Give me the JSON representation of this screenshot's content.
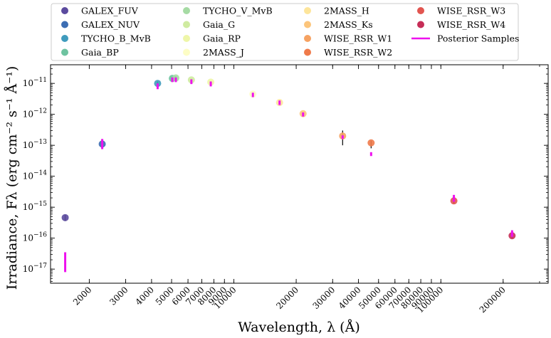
{
  "chart_data": {
    "type": "scatter",
    "xlabel": "Wavelength, λ (Å)",
    "ylabel": "Irradiance, Fλ (erg cm⁻² s⁻¹ Å⁻¹)",
    "x_scale": "log",
    "y_scale": "log",
    "xlim": [
      1300,
      330000
    ],
    "ylim": [
      3.5e-18,
      4e-11
    ],
    "x_ticks": [
      {
        "value": 2000,
        "label": "2000"
      },
      {
        "value": 3000,
        "label": "3000"
      },
      {
        "value": 4000,
        "label": "4000"
      },
      {
        "value": 5000,
        "label": "5000"
      },
      {
        "value": 6000,
        "label": "6000"
      },
      {
        "value": 7000,
        "label": "7000"
      },
      {
        "value": 8000,
        "label": "8000"
      },
      {
        "value": 9000,
        "label": "9000"
      },
      {
        "value": 10000,
        "label": "10000"
      },
      {
        "value": 20000,
        "label": "20000"
      },
      {
        "value": 30000,
        "label": "30000"
      },
      {
        "value": 40000,
        "label": "40000"
      },
      {
        "value": 50000,
        "label": "50000"
      },
      {
        "value": 60000,
        "label": "60000"
      },
      {
        "value": 70000,
        "label": "70000"
      },
      {
        "value": 80000,
        "label": "80000"
      },
      {
        "value": 90000,
        "label": "90000"
      },
      {
        "value": 100000,
        "label": "100000"
      },
      {
        "value": 200000,
        "label": "200000"
      }
    ],
    "y_ticks": [
      {
        "value": 1e-17,
        "base": "10",
        "exp": "−17"
      },
      {
        "value": 1e-16,
        "base": "10",
        "exp": "−16"
      },
      {
        "value": 1e-15,
        "base": "10",
        "exp": "−15"
      },
      {
        "value": 1e-14,
        "base": "10",
        "exp": "−14"
      },
      {
        "value": 1e-13,
        "base": "10",
        "exp": "−13"
      },
      {
        "value": 1e-12,
        "base": "10",
        "exp": "−12"
      },
      {
        "value": 1e-11,
        "base": "10",
        "exp": "−11"
      }
    ],
    "grid": false,
    "legend_position": "top-outside",
    "legend_columns": 4,
    "photometry": [
      {
        "name": "GALEX_FUV",
        "color": "#5b4a9e",
        "x": 1530,
        "y": 4.6e-16,
        "err_lo": 3.6e-16,
        "err_hi": 5.6e-16
      },
      {
        "name": "GALEX_NUV",
        "color": "#3c6db3",
        "x": 2310,
        "y": 1.1e-13,
        "err_lo": 9e-14,
        "err_hi": 1.3e-13
      },
      {
        "name": "TYCHO_B_MvB",
        "color": "#3f9bbd",
        "x": 4280,
        "y": 1e-11,
        "err_lo": 8.5e-12,
        "err_hi": 1.15e-11
      },
      {
        "name": "Gaia_BP",
        "color": "#6ec3a0",
        "x": 5040,
        "y": 1.45e-11,
        "err_lo": 1.3e-11,
        "err_hi": 1.6e-11
      },
      {
        "name": "TYCHO_V_MvB",
        "color": "#a6dba4",
        "x": 5240,
        "y": 1.5e-11,
        "err_lo": 1.3e-11,
        "err_hi": 1.7e-11
      },
      {
        "name": "Gaia_G",
        "color": "#cfeba0",
        "x": 6230,
        "y": 1.3e-11,
        "err_lo": 1.2e-11,
        "err_hi": 1.4e-11
      },
      {
        "name": "Gaia_RP",
        "color": "#eef6a8",
        "x": 7730,
        "y": 1.1e-11,
        "err_lo": 1e-11,
        "err_hi": 1.2e-11
      },
      {
        "name": "2MASS_J",
        "color": "#fdfdc5",
        "x": 12350,
        "y": 4.5e-12,
        "err_lo": 4.2e-12,
        "err_hi": 4.8e-12
      },
      {
        "name": "2MASS_H",
        "color": "#fde59b",
        "x": 16620,
        "y": 2.4e-12,
        "err_lo": 2.2e-12,
        "err_hi": 2.6e-12
      },
      {
        "name": "2MASS_Ks",
        "color": "#fcc57b",
        "x": 21590,
        "y": 1.05e-12,
        "err_lo": 9.5e-13,
        "err_hi": 1.15e-12
      },
      {
        "name": "WISE_RSR_W1",
        "color": "#f6a262",
        "x": 33526,
        "y": 2e-13,
        "err_lo": 1e-13,
        "err_hi": 3e-13
      },
      {
        "name": "WISE_RSR_W2",
        "color": "#ef7a4a",
        "x": 46028,
        "y": 1.2e-13,
        "err_lo": 8e-14,
        "err_hi": 1.4e-13
      },
      {
        "name": "WISE_RSR_W3",
        "color": "#e25550",
        "x": 115608,
        "y": 1.6e-15,
        "err_lo": 1.3e-15,
        "err_hi": 1.9e-15
      },
      {
        "name": "WISE_RSR_W4",
        "color": "#c62d57",
        "x": 220883,
        "y": 1.2e-16,
        "err_lo": 1.05e-16,
        "err_hi": 1.4e-16
      }
    ],
    "posterior_samples": {
      "name": "Posterior Samples",
      "color": "#ee11ee",
      "ranges": [
        {
          "x": 1530,
          "lo": 8e-18,
          "hi": 3.5e-17
        },
        {
          "x": 2310,
          "lo": 7.5e-14,
          "hi": 1.6e-13
        },
        {
          "x": 4280,
          "lo": 6.5e-12,
          "hi": 1e-11
        },
        {
          "x": 5040,
          "lo": 1.1e-11,
          "hi": 1.55e-11
        },
        {
          "x": 5240,
          "lo": 1.1e-11,
          "hi": 1.55e-11
        },
        {
          "x": 6230,
          "lo": 9.5e-12,
          "hi": 1.35e-11
        },
        {
          "x": 7730,
          "lo": 8e-12,
          "hi": 1.15e-11
        },
        {
          "x": 12350,
          "lo": 3.6e-12,
          "hi": 5e-12
        },
        {
          "x": 16620,
          "lo": 2e-12,
          "hi": 2.8e-12
        },
        {
          "x": 21590,
          "lo": 8.5e-13,
          "hi": 1.15e-12
        },
        {
          "x": 33526,
          "lo": 1.6e-13,
          "hi": 2.1e-13
        },
        {
          "x": 46028,
          "lo": 4.5e-14,
          "hi": 6e-14
        },
        {
          "x": 115608,
          "lo": 1.5e-15,
          "hi": 2.5e-15
        },
        {
          "x": 220883,
          "lo": 1.1e-16,
          "hi": 1.8e-16
        }
      ]
    }
  }
}
